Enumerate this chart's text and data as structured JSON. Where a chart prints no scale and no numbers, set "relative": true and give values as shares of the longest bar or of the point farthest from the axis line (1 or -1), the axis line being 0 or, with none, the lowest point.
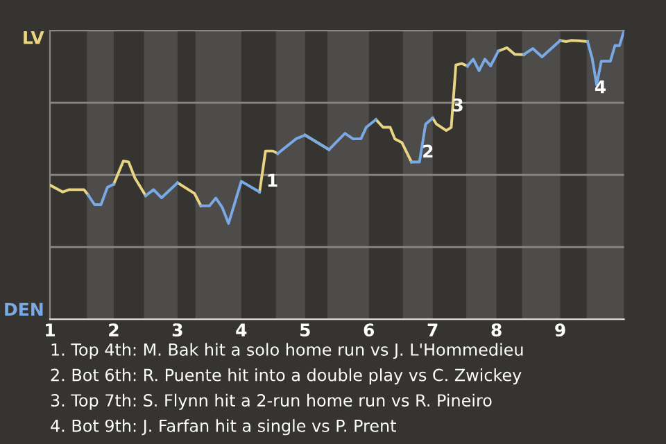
{
  "chart_data": {
    "type": "line",
    "relative": true,
    "x": [
      1,
      1.2,
      1.3,
      1.534,
      1.6,
      1.7,
      1.8,
      1.9,
      2,
      2.15,
      2.233,
      2.333,
      2.5,
      2.625,
      2.75,
      3,
      3.266,
      3.366,
      3.5,
      3.6,
      3.7,
      3.8,
      4,
      4.286,
      4.38,
      4.494,
      4.571,
      4.857,
      5,
      5.375,
      5.625,
      5.75,
      5.875,
      5.958,
      6.111,
      6.222,
      6.333,
      6.407,
      6.518,
      6.667,
      6.793,
      6.889,
      7,
      7.06,
      7.213,
      7.291,
      7.364,
      7.455,
      7.545,
      7.636,
      7.727,
      7.818,
      7.909,
      8.029,
      8.163,
      8.286,
      8.429,
      8.571,
      8.714,
      9,
      9.096,
      9.167,
      9.286,
      9.429,
      9.5,
      9.571,
      9.643,
      9.786,
      9.857,
      9.929,
      10
    ],
    "series": [
      {
        "name": "LV",
        "color": "#e8d482",
        "values": [
          0.465,
          0.441,
          0.449,
          0.449,
          0.43,
          null,
          null,
          null,
          0.468,
          0.548,
          0.545,
          0.489,
          0.428,
          null,
          null,
          0.473,
          0.436,
          0.393,
          null,
          null,
          null,
          null,
          null,
          0.441,
          0.583,
          0.583,
          0.574,
          null,
          0.638,
          0.588,
          null,
          null,
          null,
          null,
          0.692,
          0.665,
          0.665,
          0.625,
          0.612,
          0.545,
          null,
          null,
          0.697,
          0.676,
          0.654,
          0.665,
          0.881,
          0.886,
          0.877,
          null,
          null,
          null,
          null,
          0.929,
          0.941,
          0.918,
          0.917,
          null,
          null,
          0.966,
          0.962,
          0.966,
          0.965,
          0.962,
          null,
          null,
          null,
          null,
          null,
          null,
          null
        ]
      },
      {
        "name": "DEN",
        "color": "#7aaae6",
        "values": [
          null,
          null,
          null,
          null,
          0.43,
          0.397,
          0.397,
          0.457,
          0.468,
          null,
          null,
          null,
          0.428,
          0.449,
          0.421,
          0.473,
          null,
          0.393,
          0.393,
          0.42,
          0.388,
          0.332,
          0.478,
          0.441,
          null,
          null,
          0.574,
          0.625,
          0.638,
          0.588,
          0.644,
          0.625,
          0.625,
          0.665,
          0.692,
          null,
          null,
          null,
          null,
          0.545,
          0.545,
          0.676,
          0.697,
          null,
          null,
          null,
          null,
          null,
          0.877,
          0.901,
          0.861,
          0.901,
          0.878,
          0.929,
          null,
          null,
          0.917,
          0.938,
          0.909,
          0.966,
          null,
          null,
          null,
          0.962,
          0.905,
          0.812,
          0.894,
          0.894,
          0.948,
          0.948,
          1.0
        ]
      }
    ],
    "xlim": [
      1,
      10
    ],
    "xticks": [
      1,
      2,
      3,
      4,
      5,
      6,
      7,
      8,
      9
    ],
    "bands": [
      {
        "axis": "x",
        "from": 1.58,
        "to": 2,
        "color": "#4e4c4a"
      },
      {
        "axis": "x",
        "from": 2.475,
        "to": 3,
        "color": "#4e4c4a"
      },
      {
        "axis": "x",
        "from": 3.28,
        "to": 4,
        "color": "#4e4c4a"
      },
      {
        "axis": "x",
        "from": 4.543,
        "to": 5,
        "color": "#4e4c4a"
      },
      {
        "axis": "x",
        "from": 5.35,
        "to": 6,
        "color": "#4e4c4a"
      },
      {
        "axis": "x",
        "from": 6.533,
        "to": 7,
        "color": "#4e4c4a"
      },
      {
        "axis": "x",
        "from": 7.527,
        "to": 8,
        "color": "#4e4c4a"
      },
      {
        "axis": "x",
        "from": 8.4,
        "to": 9,
        "color": "#4e4c4a"
      },
      {
        "axis": "x",
        "from": 9.414,
        "to": 10,
        "color": "#4e4c4a"
      }
    ],
    "ref_lines": [
      {
        "axis": "y",
        "value": 0.25,
        "color": "#8a8886"
      },
      {
        "axis": "y",
        "value": 0.5,
        "color": "#8a8886"
      },
      {
        "axis": "y",
        "value": 0.75,
        "color": "#8a8886"
      }
    ],
    "annotations": [
      {
        "text": "1",
        "x": 4.486,
        "y": 0.476
      },
      {
        "text": "2",
        "x": 6.926,
        "y": 0.577
      },
      {
        "text": "3",
        "x": 7.395,
        "y": 0.737
      },
      {
        "text": "4",
        "x": 9.63,
        "y": 0.8
      },
      "1. Top 4th: M. Bak hit a solo home run vs J. L'Hommedieu",
      "2. Bot 6th: R. Puente hit into a double play vs C. Zwickey",
      "3. Top 7th: S. Flynn hit a 2-run home run vs R. Pineiro",
      "4. Bot 9th: J. Farfan hit a single vs P. Prent"
    ],
    "grid": false,
    "legend": false,
    "marker": "none",
    "line_style": "solid"
  }
}
